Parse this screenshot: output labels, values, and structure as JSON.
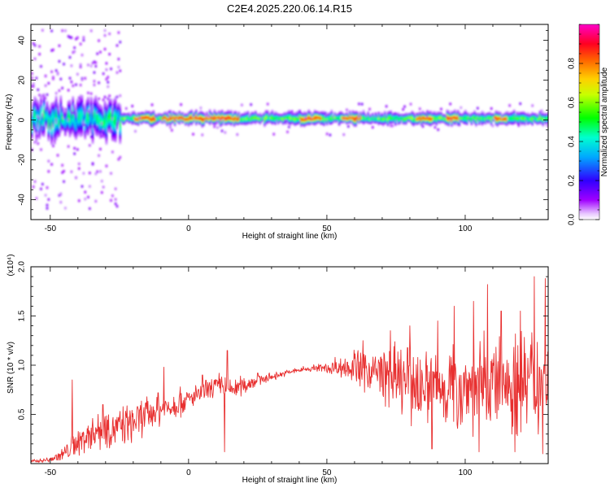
{
  "title": "C2E4.2025.220.06.14.R15",
  "chart_data": [
    {
      "type": "heatmap",
      "xlabel": "Height of straight line (km)",
      "ylabel": "Frequency (Hz)",
      "xlim": [
        -57,
        130
      ],
      "ylim": [
        -50,
        48
      ],
      "xticks": [
        -50,
        0,
        50,
        100
      ],
      "yticks": [
        -40,
        -20,
        0,
        20,
        40
      ],
      "colorbar": {
        "label": "Normalized spectral amplitude",
        "range": [
          0.0,
          1.0
        ],
        "ticks": [
          0.0,
          0.2,
          0.4,
          0.6,
          0.8
        ],
        "colors": [
          "#ffffff",
          "#a000ff",
          "#0000ff",
          "#00ffff",
          "#00ff00",
          "#ffff00",
          "#ff8000",
          "#ff0000",
          "#ff00ff"
        ]
      },
      "ridge": {
        "frequency_hz": 1,
        "peak_segments_km": [
          [
            -20,
            -12
          ],
          [
            -10,
            18
          ],
          [
            40,
            48
          ],
          [
            55,
            62
          ],
          [
            82,
            88
          ],
          [
            93,
            97
          ],
          [
            110,
            115
          ]
        ],
        "noisy_region_km": [
          -57,
          -25
        ]
      }
    },
    {
      "type": "line",
      "xlabel": "Height of straight line (km)",
      "ylabel": "SNR (10 * v/v)",
      "y_multiplier": "(x10⁴)",
      "xlim": [
        -57,
        130
      ],
      "ylim": [
        0,
        2.0
      ],
      "xticks": [
        -50,
        0,
        50,
        100
      ],
      "yticks": [
        0.5,
        1.0,
        1.5,
        2.0
      ],
      "color": "#e83030",
      "envelope_x": [
        -57,
        -50,
        -45,
        -40,
        -35,
        -30,
        -25,
        -20,
        -15,
        -10,
        -5,
        0,
        5,
        10,
        15,
        20,
        25,
        30,
        35,
        40,
        45,
        50,
        55,
        60,
        65,
        70,
        75,
        80,
        85,
        90,
        95,
        100,
        105,
        110,
        115,
        120,
        125,
        130
      ],
      "envelope_mean": [
        0.02,
        0.04,
        0.1,
        0.22,
        0.32,
        0.38,
        0.36,
        0.42,
        0.5,
        0.55,
        0.6,
        0.65,
        0.72,
        0.78,
        0.75,
        0.8,
        0.85,
        0.88,
        0.92,
        0.95,
        0.97,
        0.97,
        0.98,
        0.98,
        0.95,
        0.9,
        0.85,
        0.82,
        0.8,
        0.78,
        0.78,
        0.8,
        0.8,
        0.82,
        0.84,
        0.84,
        0.85,
        0.85
      ],
      "envelope_spread": [
        0.02,
        0.03,
        0.08,
        0.15,
        0.2,
        0.22,
        0.2,
        0.2,
        0.18,
        0.16,
        0.15,
        0.12,
        0.1,
        0.15,
        0.12,
        0.1,
        0.06,
        0.04,
        0.03,
        0.03,
        0.04,
        0.06,
        0.1,
        0.18,
        0.25,
        0.3,
        0.35,
        0.38,
        0.4,
        0.42,
        0.45,
        0.45,
        0.48,
        0.5,
        0.55,
        0.55,
        0.6,
        0.6
      ],
      "peaks": [
        [
          -42,
          0.85
        ],
        [
          -31,
          0.6
        ],
        [
          -11,
          0.72
        ],
        [
          -9,
          0.98
        ],
        [
          -3,
          0.78
        ],
        [
          5,
          0.9
        ],
        [
          12,
          0.88
        ],
        [
          14,
          1.15
        ],
        [
          25,
          0.92
        ],
        [
          53,
          1.08
        ],
        [
          63,
          1.25
        ],
        [
          73,
          1.35
        ],
        [
          80,
          1.4
        ],
        [
          90,
          1.45
        ],
        [
          96,
          1.6
        ],
        [
          103,
          1.65
        ],
        [
          108,
          1.82
        ],
        [
          113,
          1.55
        ],
        [
          120,
          1.55
        ],
        [
          125,
          1.9
        ],
        [
          129,
          1.88
        ]
      ],
      "troughs": [
        [
          13,
          0.12
        ],
        [
          88,
          0.15
        ],
        [
          105,
          0.12
        ],
        [
          118,
          0.12
        ],
        [
          128,
          0.1
        ]
      ]
    }
  ]
}
